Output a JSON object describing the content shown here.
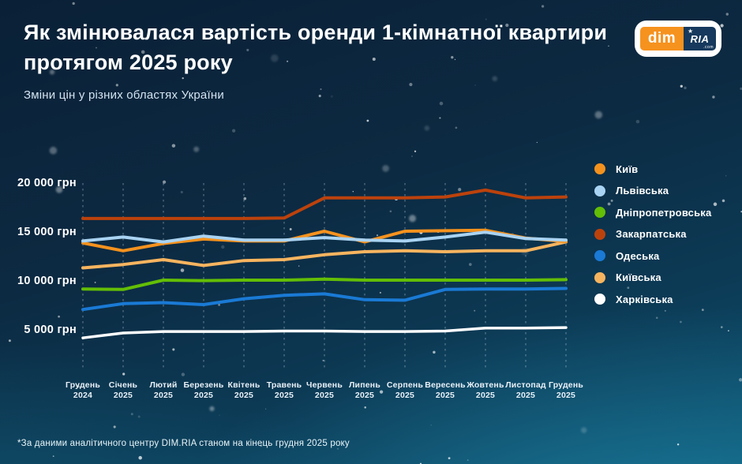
{
  "page": {
    "title": "Як змінювалася вартість оренди 1-кімнатної квартири протягом 2025 року",
    "subtitle": "Зміни цін у різних областях України",
    "footnote": "*За даними аналітичного центру DIM.RIA станом на кінець грудня 2025 року"
  },
  "logo": {
    "left": "dim",
    "right": "RIA",
    "suffix": ".com",
    "star": "★"
  },
  "colors": {
    "logo_orange": "#f6921e",
    "logo_navy": "#16395d",
    "background_top": "#0a2036",
    "background_bottom": "#0e5573",
    "grid": "rgba(214,230,242,0.45)"
  },
  "chart_data": {
    "type": "line",
    "title": "Як змінювалася вартість оренди 1-кімнатної квартири протягом 2025 року",
    "subtitle": "Зміни цін у різних областях України",
    "unit": "грн",
    "grid": "vertical-dashed",
    "legend_position": "right",
    "ylim": [
      3500,
      21000
    ],
    "y_ticks": [
      {
        "value": 20000,
        "label": "20 000 грн"
      },
      {
        "value": 15000,
        "label": "15 000 грн"
      },
      {
        "value": 10000,
        "label": "10 000 грн"
      },
      {
        "value": 5000,
        "label": "5 000 грн"
      }
    ],
    "categories": [
      "Грудень 2024",
      "Січень 2025",
      "Лютий 2025",
      "Березень 2025",
      "Квітень 2025",
      "Травень 2025",
      "Червень 2025",
      "Липень 2025",
      "Серпень 2025",
      "Вересень 2025",
      "Жовтень 2025",
      "Листопад 2025",
      "Грудень 2025"
    ],
    "series": [
      {
        "name": "Київ",
        "color": "#f5921e",
        "values": [
          13800,
          13000,
          13750,
          14200,
          14000,
          14000,
          15000,
          13900,
          15000,
          15050,
          15100,
          14300,
          13950
        ]
      },
      {
        "name": "Львівська",
        "color": "#a9d3f2",
        "values": [
          14000,
          14400,
          13900,
          14500,
          14100,
          14100,
          14350,
          14100,
          14000,
          14400,
          14900,
          14250,
          14100
        ]
      },
      {
        "name": "Дніпропетровська",
        "color": "#63be06",
        "values": [
          9100,
          9050,
          10000,
          9950,
          10000,
          10000,
          10100,
          10000,
          10000,
          10000,
          10000,
          10000,
          10050
        ]
      },
      {
        "name": "Закарпатська",
        "color": "#bc420c",
        "values": [
          16300,
          16300,
          16300,
          16300,
          16300,
          16350,
          18400,
          18400,
          18400,
          18500,
          19200,
          18400,
          18500
        ]
      },
      {
        "name": "Одеська",
        "color": "#1a7ad5",
        "values": [
          7000,
          7600,
          7700,
          7500,
          8100,
          8450,
          8600,
          8000,
          7950,
          9050,
          9100,
          9100,
          9150
        ]
      },
      {
        "name": "Київська",
        "color": "#f7b45f",
        "values": [
          11250,
          11600,
          12100,
          11500,
          12000,
          12100,
          12600,
          12900,
          13000,
          12900,
          13000,
          13000,
          13900
        ]
      },
      {
        "name": "Харківська",
        "color": "#ffffff",
        "values": [
          4100,
          4600,
          4750,
          4750,
          4750,
          4800,
          4800,
          4750,
          4750,
          4800,
          5100,
          5100,
          5150
        ]
      }
    ],
    "draw_order": [
      "Закарпатська",
      "Харківська",
      "Одеська",
      "Дніпропетровська",
      "Київська",
      "Київ",
      "Львівська"
    ]
  }
}
